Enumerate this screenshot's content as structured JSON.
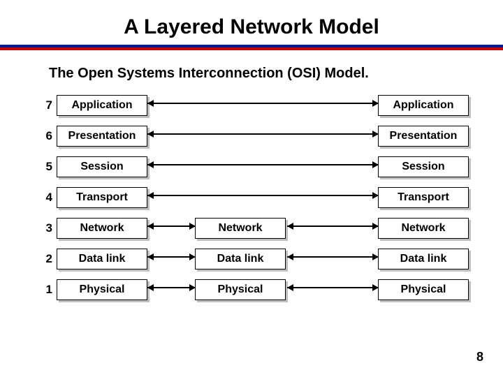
{
  "title": "A Layered Network Model",
  "subtitle": "The Open Systems Interconnection (OSI) Model.",
  "rule_color_top": "#001a99",
  "rule_color_bottom": "#cc0000",
  "page_number": "8",
  "layers": [
    {
      "n": "7",
      "label": "Application",
      "cols": 2
    },
    {
      "n": "6",
      "label": "Presentation",
      "cols": 2
    },
    {
      "n": "5",
      "label": "Session",
      "cols": 2
    },
    {
      "n": "4",
      "label": "Transport",
      "cols": 2
    },
    {
      "n": "3",
      "label": "Network",
      "cols": 3
    },
    {
      "n": "2",
      "label": "Data link",
      "cols": 3
    },
    {
      "n": "1",
      "label": "Physical",
      "cols": 3
    }
  ],
  "box_border_color": "#000000",
  "box_bg_color": "#ffffff",
  "box_shadow_color": "#bfbfbf",
  "arrow_color": "#000000"
}
